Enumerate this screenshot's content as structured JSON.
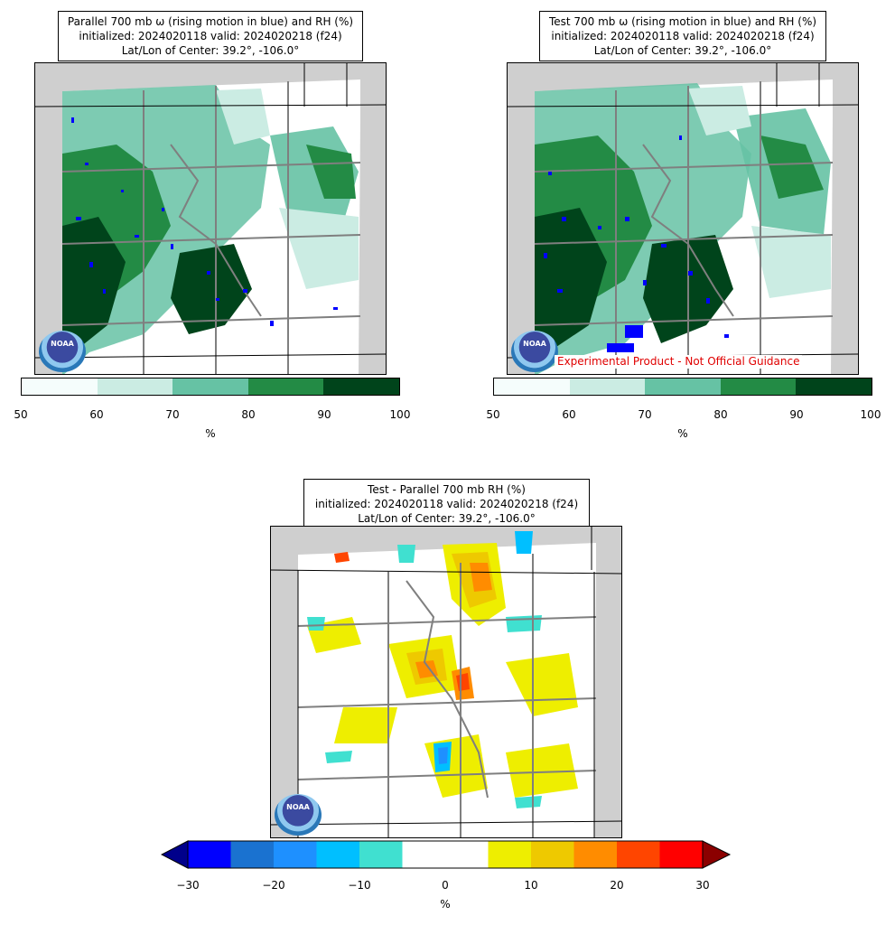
{
  "panels": [
    {
      "id": "parallel",
      "title_lines": [
        "Parallel 700 mb ω (rising motion in blue) and RH (%)",
        "initialized: 2024020118 valid: 2024020218 (f24)",
        "Lat/Lon of Center: 39.2°, -106.0°"
      ],
      "colorbar": {
        "ticks": [
          "50",
          "60",
          "70",
          "80",
          "90",
          "100"
        ],
        "colors": [
          "#f5fdfc",
          "#cbece3",
          "#66c2a4",
          "#238b45",
          "#00441b"
        ],
        "unit": "%"
      }
    },
    {
      "id": "test",
      "title_lines": [
        "Test 700 mb ω (rising motion in blue) and RH (%)",
        "initialized: 2024020118 valid: 2024020218 (f24)",
        "Lat/Lon of Center: 39.2°, -106.0°"
      ],
      "disclaimer": "Experimental Product - Not Official Guidance",
      "colorbar": {
        "ticks": [
          "50",
          "60",
          "70",
          "80",
          "90",
          "100"
        ],
        "colors": [
          "#f5fdfc",
          "#cbece3",
          "#66c2a4",
          "#238b45",
          "#00441b"
        ],
        "unit": "%"
      }
    },
    {
      "id": "difference",
      "title_lines": [
        "Test - Parallel 700 mb RH (%)",
        "initialized: 2024020118 valid: 2024020218 (f24)",
        "Lat/Lon of Center: 39.2°, -106.0°"
      ],
      "colorbar": {
        "ticks": [
          "−30",
          "−20",
          "−10",
          "0",
          "10",
          "20",
          "30"
        ],
        "colors": [
          "#0000ff",
          "#1a72d0",
          "#1e90ff",
          "#00bfff",
          "#40e0d0",
          "#ffffff",
          "#ffffff",
          "#eeee00",
          "#eec900",
          "#ff8c00",
          "#ff4500",
          "#ff0000"
        ],
        "under_color": "#00008b",
        "over_color": "#8b0000",
        "unit": "%"
      }
    }
  ],
  "logo": {
    "text": "NOAA",
    "icon": "noaa-logo-icon"
  },
  "colors": {
    "land_gray": "#cfcfcf",
    "state_lines": "#000000",
    "county_lines": "#7f7f7f",
    "omega_blue": "#0000ff"
  }
}
